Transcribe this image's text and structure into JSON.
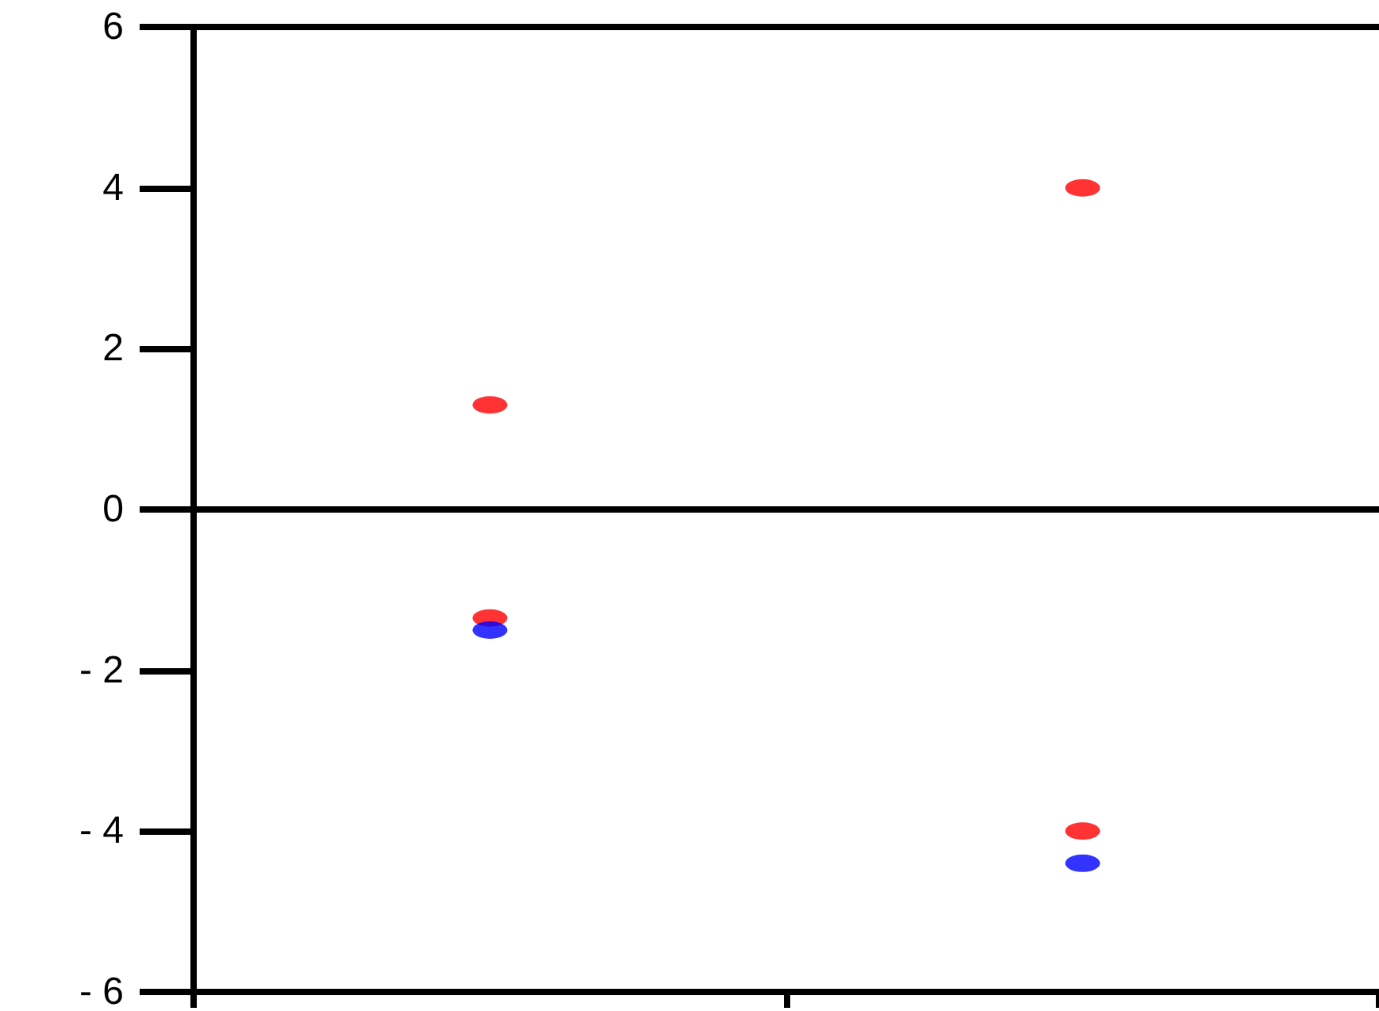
{
  "chart_data": {
    "type": "scatter",
    "categories": [
      null,
      null
    ],
    "series": [
      {
        "color": "#ff0000",
        "values": [
          1.3,
          4.0
        ]
      },
      {
        "color": "#ff0000",
        "values": [
          -1.35,
          -4.0
        ]
      },
      {
        "color": "#0000ff",
        "values": [
          -1.5,
          -4.4
        ]
      }
    ],
    "ylim": [
      -6,
      6
    ],
    "yticks": [
      {
        "value": -6,
        "label": "- 6"
      },
      {
        "value": -4,
        "label": "- 4"
      },
      {
        "value": -2,
        "label": "- 2"
      },
      0,
      2,
      4,
      6
    ],
    "ref_lines": [
      {
        "axis": "y",
        "value": 0,
        "color": "#000000"
      }
    ],
    "tick_labels": "y",
    "marker": "circle"
  }
}
